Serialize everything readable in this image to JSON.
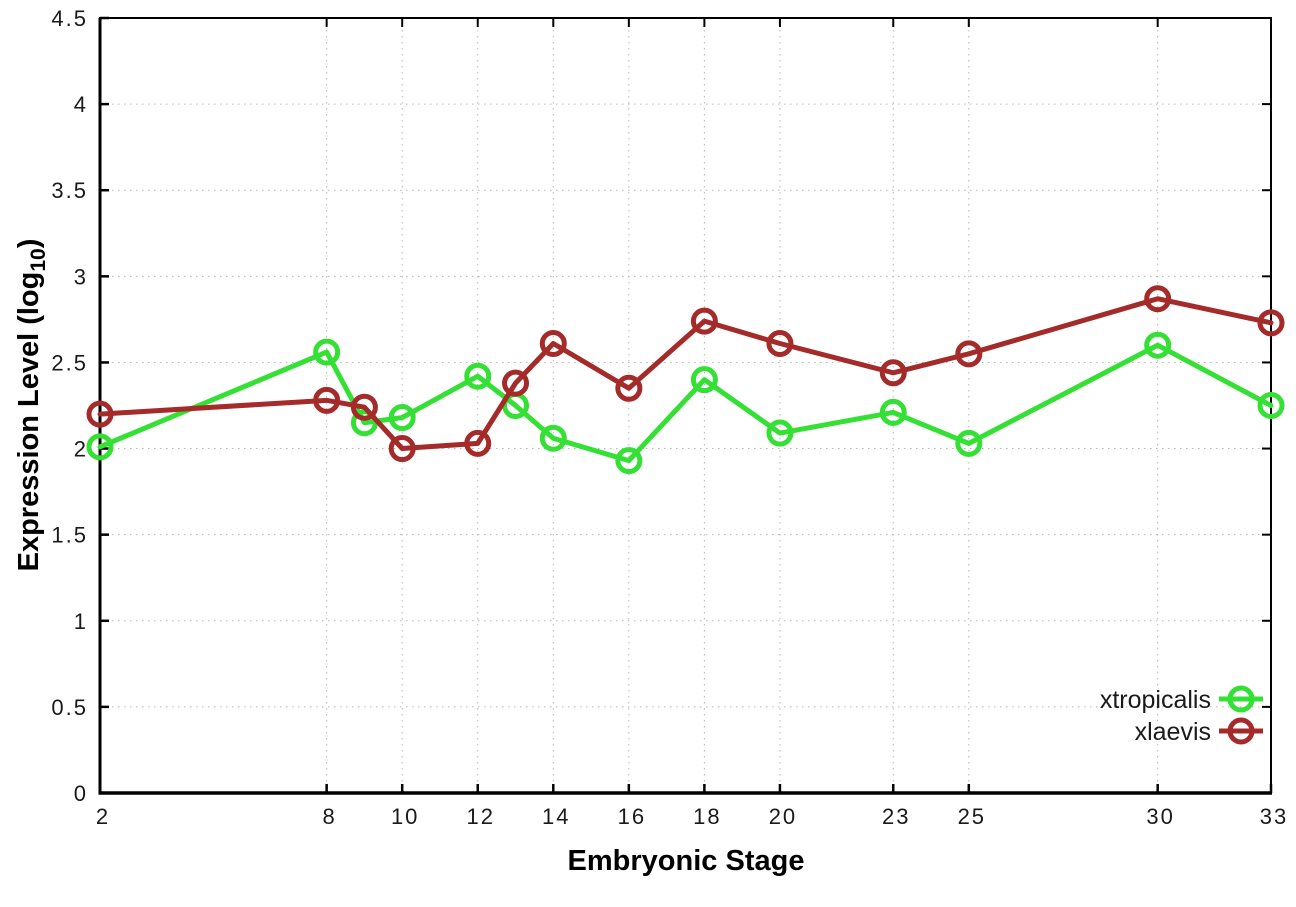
{
  "chart_data": {
    "type": "line",
    "title": "",
    "xlabel": "Embryonic Stage",
    "ylabel": "Expression Level (log10)",
    "ylabel_parts": {
      "main": "Expression Level (log",
      "sub": "10",
      "close": ")"
    },
    "x": [
      2,
      8,
      9,
      10,
      12,
      13,
      14,
      16,
      18,
      20,
      23,
      25,
      30,
      33
    ],
    "series": [
      {
        "name": "xtropicalis",
        "color": "#33e033",
        "values": [
          2.01,
          2.56,
          2.15,
          2.18,
          2.42,
          2.25,
          2.06,
          1.93,
          2.4,
          2.09,
          2.21,
          2.03,
          2.6,
          2.25
        ]
      },
      {
        "name": "xlaevis",
        "color": "#a52a2a",
        "values": [
          2.2,
          2.28,
          2.24,
          2.0,
          2.03,
          2.38,
          2.61,
          2.35,
          2.74,
          2.61,
          2.44,
          2.55,
          2.87,
          2.73
        ]
      }
    ],
    "xlim": [
      2,
      33
    ],
    "ylim": [
      0,
      4.5
    ],
    "xticks": [
      2,
      8,
      10,
      12,
      14,
      16,
      18,
      20,
      23,
      25,
      30,
      33
    ],
    "xtick_labels": [
      "2",
      "8",
      "10",
      "12",
      "14",
      "16",
      "18",
      "20",
      "23",
      "25",
      "30",
      "33"
    ],
    "yticks": [
      0,
      0.5,
      1,
      1.5,
      2,
      2.5,
      3,
      3.5,
      4,
      4.5
    ],
    "ytick_labels": [
      "0",
      "0.5",
      "1",
      "1.5",
      "2",
      "2.5",
      "3",
      "3.5",
      "4",
      "4.5"
    ],
    "grid": true,
    "legend_position": "inside-right",
    "style": {
      "grid_color": "#b8b8b8",
      "axis_color": "#000000",
      "tick_label_color": "#1a1a1a"
    }
  }
}
